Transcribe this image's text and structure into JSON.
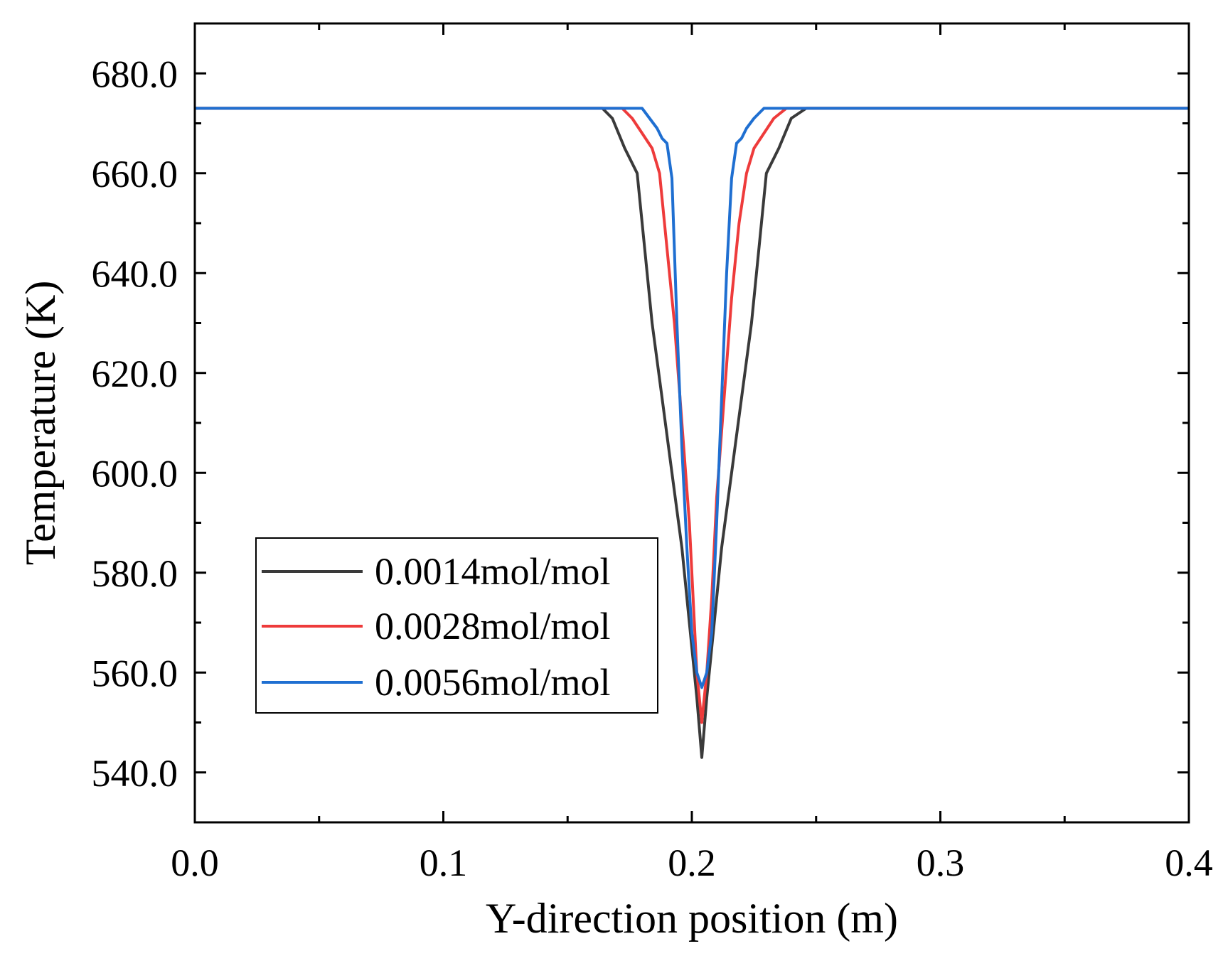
{
  "chart_data": {
    "type": "line",
    "title": "",
    "xlabel": "Y-direction position (m)",
    "ylabel": "Temperature (K)",
    "xlim": [
      0.0,
      0.4
    ],
    "ylim": [
      530,
      690
    ],
    "xticks": [
      0.0,
      0.1,
      0.2,
      0.3,
      0.4
    ],
    "xtick_labels": [
      "0.0",
      "0.1",
      "0.2",
      "0.3",
      "0.4"
    ],
    "yticks": [
      540,
      560,
      580,
      600,
      620,
      640,
      660,
      680
    ],
    "ytick_labels": [
      "540.0",
      "560.0",
      "580.0",
      "600.0",
      "620.0",
      "640.0",
      "660.0",
      "680.0"
    ],
    "grid": false,
    "legend_position": "bottom-left",
    "series": [
      {
        "name": "0.0014mol/mol",
        "color": "#3a3a3a",
        "x": [
          0.0,
          0.164,
          0.168,
          0.173,
          0.178,
          0.181,
          0.184,
          0.188,
          0.192,
          0.196,
          0.199,
          0.202,
          0.204,
          0.206,
          0.209,
          0.212,
          0.216,
          0.22,
          0.224,
          0.227,
          0.23,
          0.235,
          0.24,
          0.246,
          0.4
        ],
        "y": [
          673,
          673,
          671,
          665,
          660,
          645,
          630,
          615,
          600,
          585,
          570,
          555,
          543,
          555,
          570,
          585,
          600,
          615,
          630,
          645,
          660,
          665,
          671,
          673,
          673
        ]
      },
      {
        "name": "0.0028mol/mol",
        "color": "#ee3b3b",
        "x": [
          0.0,
          0.172,
          0.176,
          0.18,
          0.184,
          0.187,
          0.19,
          0.193,
          0.196,
          0.199,
          0.201,
          0.202,
          0.204,
          0.206,
          0.208,
          0.21,
          0.213,
          0.216,
          0.219,
          0.222,
          0.225,
          0.229,
          0.233,
          0.238,
          0.4
        ],
        "y": [
          673,
          673,
          671,
          668,
          665,
          660,
          645,
          630,
          610,
          590,
          570,
          560,
          550,
          560,
          575,
          595,
          615,
          635,
          650,
          660,
          665,
          668,
          671,
          673,
          673
        ]
      },
      {
        "name": "0.0056mol/mol",
        "color": "#1f6fd1",
        "x": [
          0.0,
          0.18,
          0.183,
          0.186,
          0.188,
          0.19,
          0.192,
          0.194,
          0.196,
          0.198,
          0.2,
          0.202,
          0.204,
          0.206,
          0.208,
          0.21,
          0.212,
          0.214,
          0.216,
          0.218,
          0.22,
          0.222,
          0.225,
          0.229,
          0.4
        ],
        "y": [
          673,
          673,
          671,
          669,
          667,
          666,
          659,
          630,
          605,
          585,
          568,
          560,
          557,
          560,
          568,
          590,
          615,
          640,
          659,
          666,
          667,
          669,
          671,
          673,
          673
        ]
      }
    ]
  }
}
